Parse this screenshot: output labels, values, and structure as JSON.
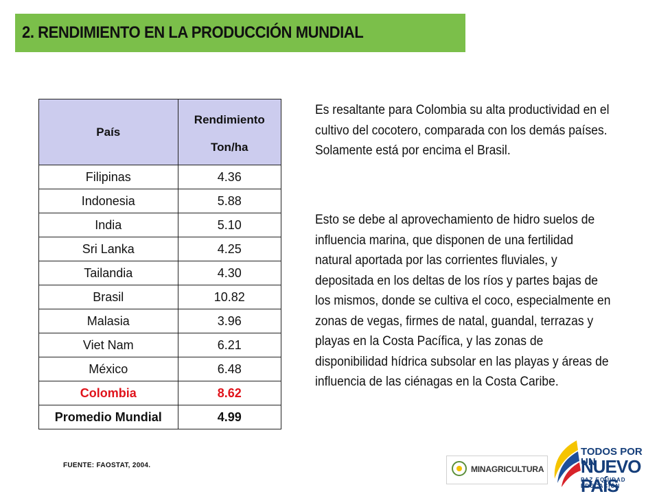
{
  "header": {
    "title": "2. RENDIMIENTO EN LA PRODUCCIÓN MUNDIAL"
  },
  "table": {
    "col_country": "País",
    "col_yield": "Rendimiento",
    "col_unit": "Ton/ha",
    "rows": [
      {
        "country": "Filipinas",
        "value": "4.36"
      },
      {
        "country": "Indonesia",
        "value": "5.88"
      },
      {
        "country": "India",
        "value": "5.10"
      },
      {
        "country": "Sri Lanka",
        "value": "4.25"
      },
      {
        "country": "Tailandia",
        "value": "4.30"
      },
      {
        "country": "Brasil",
        "value": "10.82"
      },
      {
        "country": "Malasia",
        "value": "3.96"
      },
      {
        "country": "Viet Nam",
        "value": "6.21"
      },
      {
        "country": "México",
        "value": "6.48"
      },
      {
        "country": "Colombia",
        "value": "8.62"
      },
      {
        "country": "Promedio Mundial",
        "value": "4.99"
      }
    ],
    "highlight_color": "#e0131b",
    "header_color": "#ccccee"
  },
  "source": "FUENTE: FAOSTAT, 2004.",
  "text": {
    "p1": "Es resaltante para Colombia su alta productividad en el cultivo del cocotero, comparada con los demás países. Solamente está por encima el Brasil.",
    "p2": "Esto se debe al aprovechamiento de hidro suelos de influencia marina, que disponen de una fertilidad natural aportada por las corrientes fluviales, y depositada en los deltas de los ríos y partes bajas de los mismos, donde se cultiva el coco, especialmente en zonas de vegas, firmes de natal, guandal, terrazas y playas en la Costa Pacífica, y las zonas de disponibilidad hídrica subsolar en las playas y áreas de influencia de las ciénagas en la Costa Caribe."
  },
  "logos": {
    "minagri": "MINAGRICULTURA",
    "todos": "TODOS POR UN",
    "nuevo": "NUEVO PAÍS",
    "motto": "PAZ EQUIDAD EDUCACIÓN"
  },
  "colors": {
    "title_bar": "#7bbf4a",
    "brand_blue": "#153e7a"
  }
}
